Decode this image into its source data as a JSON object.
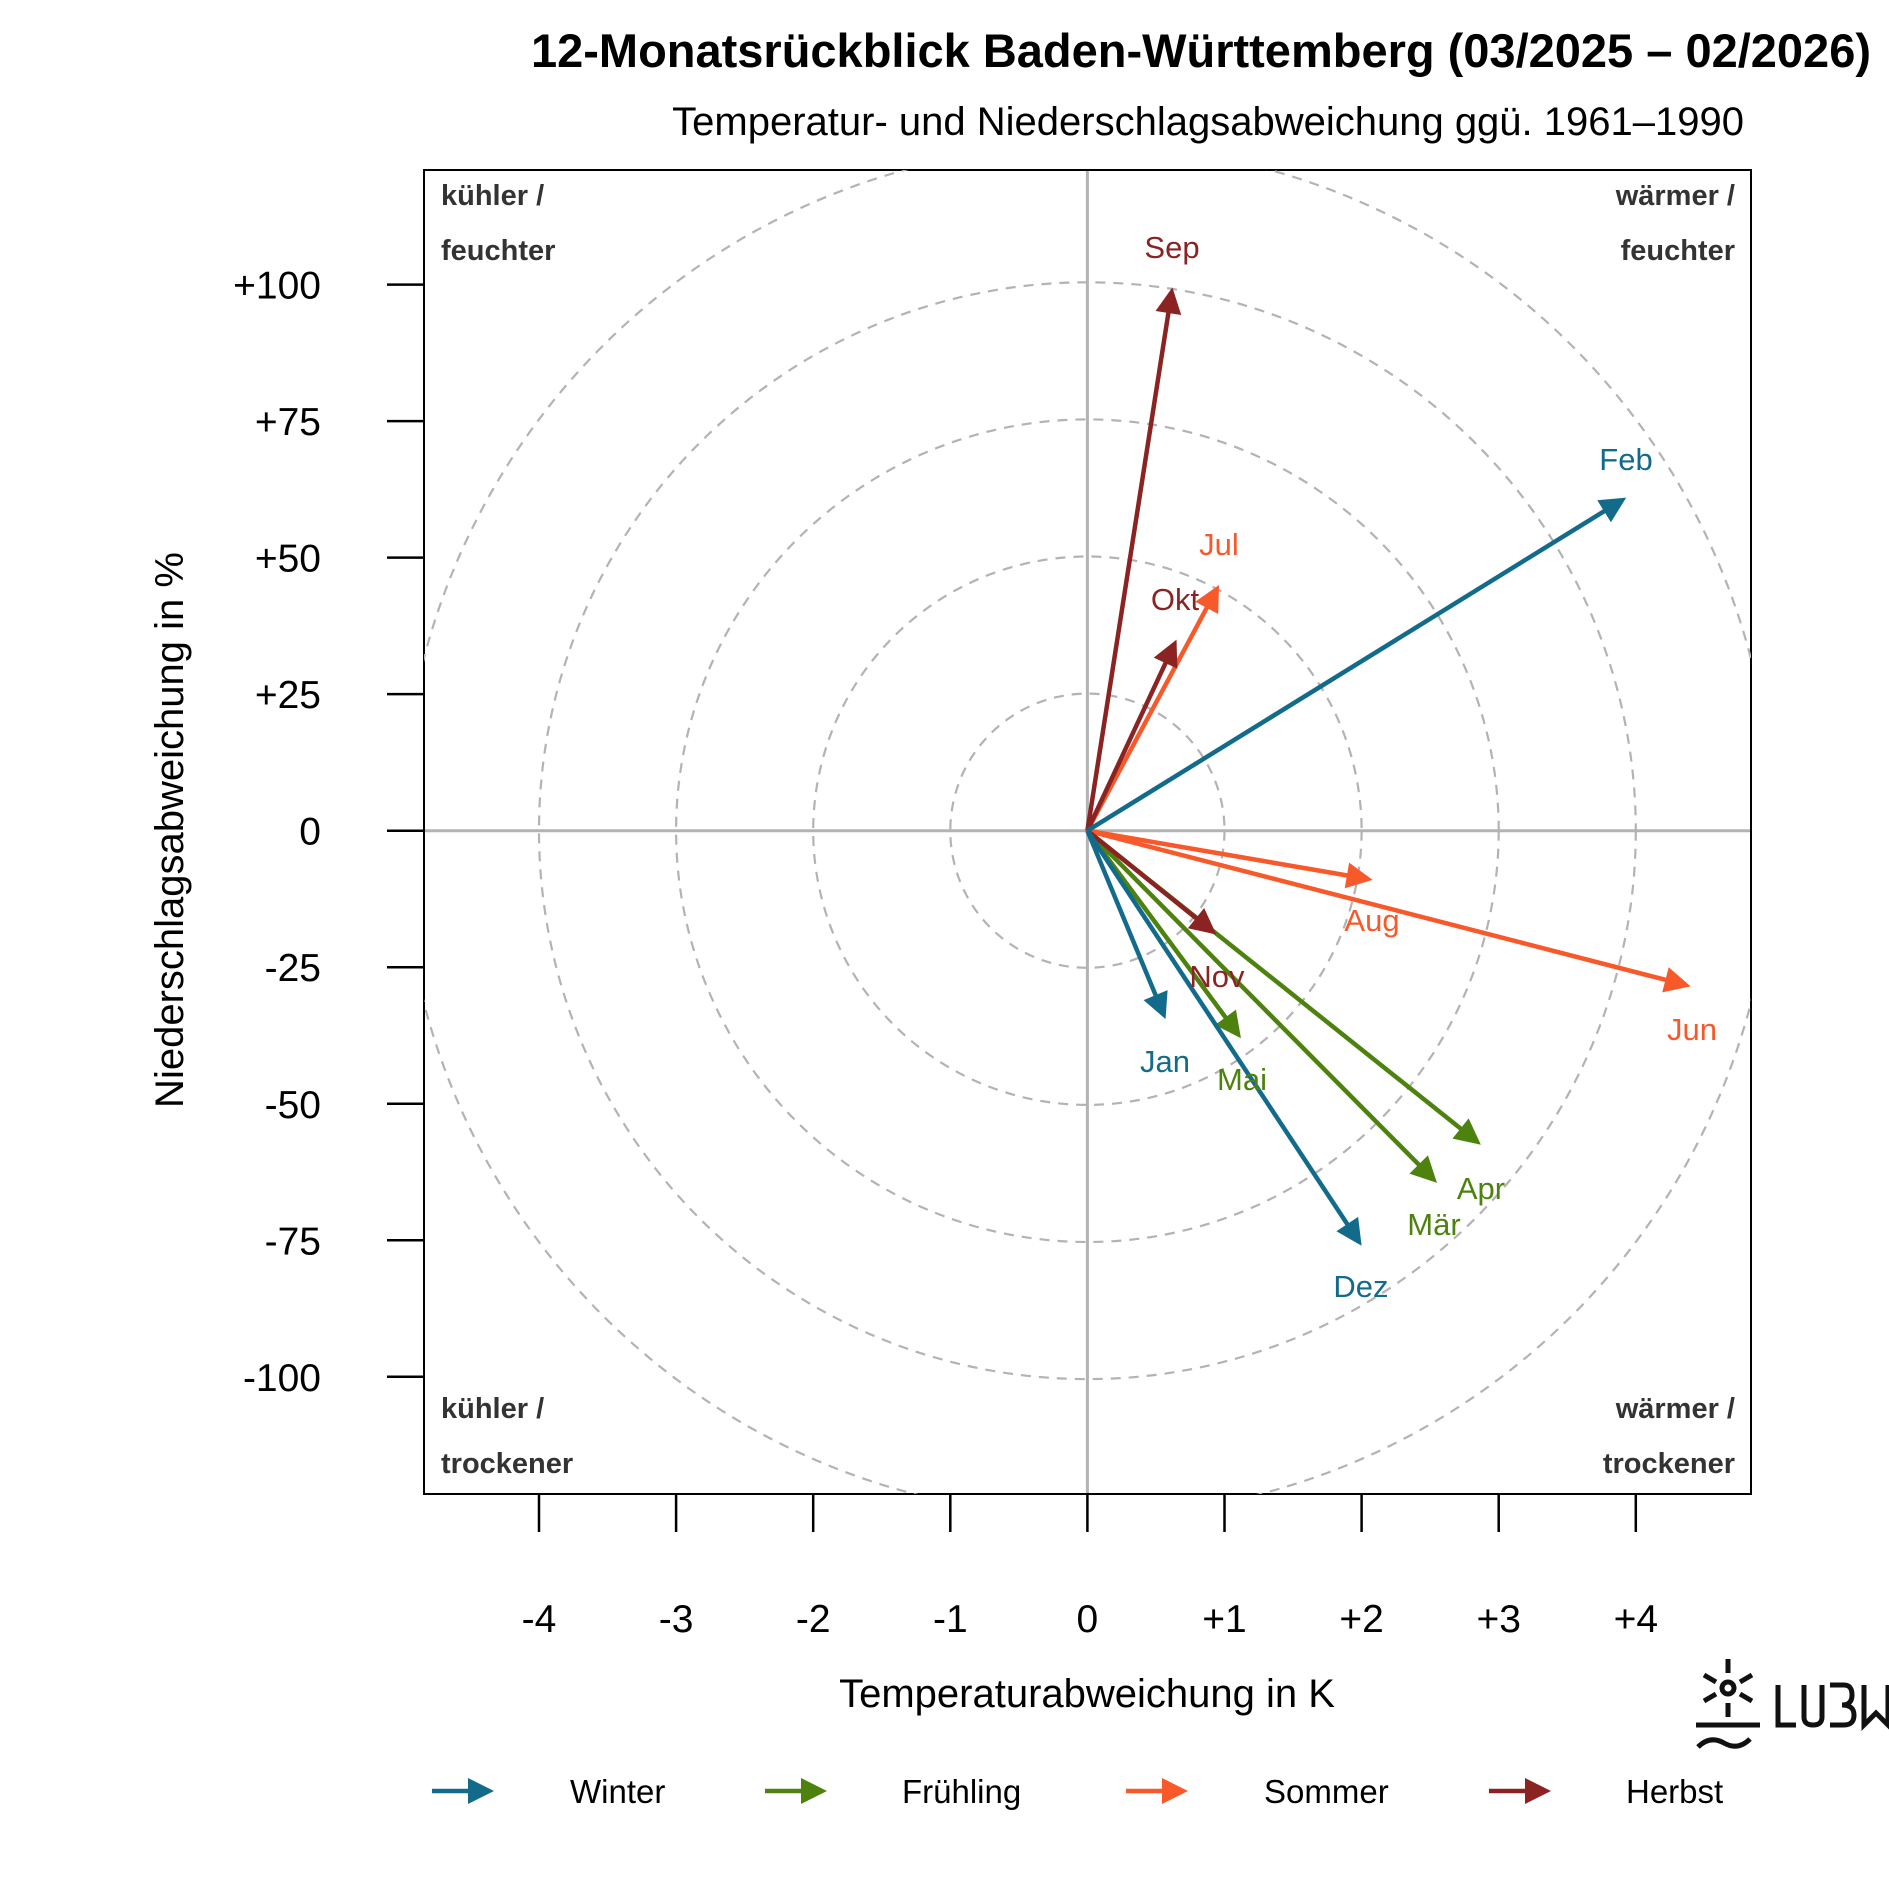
{
  "chart_data": {
    "type": "vector",
    "title": "12-Monatsrückblick Baden-Württemberg (03/2025 – 02/2026)",
    "subtitle": "Temperatur- und Niederschlagsabweichung ggü. 1961–1990",
    "xlabel": "Temperaturabweichung in K",
    "ylabel": "Niederschlagsabweichung in %",
    "xlim": [
      -4.85,
      4.85
    ],
    "ylim": [
      -121,
      121
    ],
    "x_ticks": [
      -4,
      -3,
      -2,
      -1,
      0,
      1,
      2,
      3,
      4
    ],
    "x_tick_labels": [
      "-4",
      "-3",
      "-2",
      "-1",
      "0",
      "+1",
      "+2",
      "+3",
      "+4"
    ],
    "y_ticks": [
      100,
      75,
      50,
      25,
      0,
      -25,
      -50,
      -75,
      -100
    ],
    "y_tick_labels": [
      "+100",
      "+75",
      "+50",
      "+25",
      "0",
      "-25",
      "-50",
      "-75",
      "-100"
    ],
    "reference_circles_K": [
      1,
      2,
      3,
      4,
      5
    ],
    "grid": false,
    "quadrant_labels": {
      "top_left": [
        "kühler /",
        "feuchter"
      ],
      "top_right": [
        "wärmer /",
        "feuchter"
      ],
      "bottom_left": [
        "kühler /",
        "trockener"
      ],
      "bottom_right": [
        "wärmer /",
        "trockener"
      ]
    },
    "series": [
      {
        "name": "Winter",
        "color": "#136b8c"
      },
      {
        "name": "Frühling",
        "color": "#4e820f"
      },
      {
        "name": "Sommer",
        "color": "#f7592b"
      },
      {
        "name": "Herbst",
        "color": "#8b2323"
      }
    ],
    "points": [
      {
        "month": "Mär",
        "season": 1,
        "temp": 2.55,
        "precip": -64.5
      },
      {
        "month": "Apr",
        "season": 1,
        "temp": 2.87,
        "precip": -57.5
      },
      {
        "month": "Mai",
        "season": 1,
        "temp": 1.12,
        "precip": -38
      },
      {
        "month": "Jun",
        "season": 2,
        "temp": 4.4,
        "precip": -28.5
      },
      {
        "month": "Jul",
        "season": 2,
        "temp": 0.96,
        "precip": 45
      },
      {
        "month": "Aug",
        "season": 2,
        "temp": 2.08,
        "precip": -9
      },
      {
        "month": "Sep",
        "season": 3,
        "temp": 0.62,
        "precip": 99.5
      },
      {
        "month": "Okt",
        "season": 3,
        "temp": 0.65,
        "precip": 35
      },
      {
        "month": "Nov",
        "season": 3,
        "temp": 0.94,
        "precip": -19
      },
      {
        "month": "Dez",
        "season": 0,
        "temp": 2.0,
        "precip": -76
      },
      {
        "month": "Jan",
        "season": 0,
        "temp": 0.57,
        "precip": -34.5
      },
      {
        "month": "Feb",
        "season": 0,
        "temp": 3.93,
        "precip": 61
      }
    ],
    "legend_position": "bottom"
  },
  "logo": {
    "text": "LUBW"
  }
}
